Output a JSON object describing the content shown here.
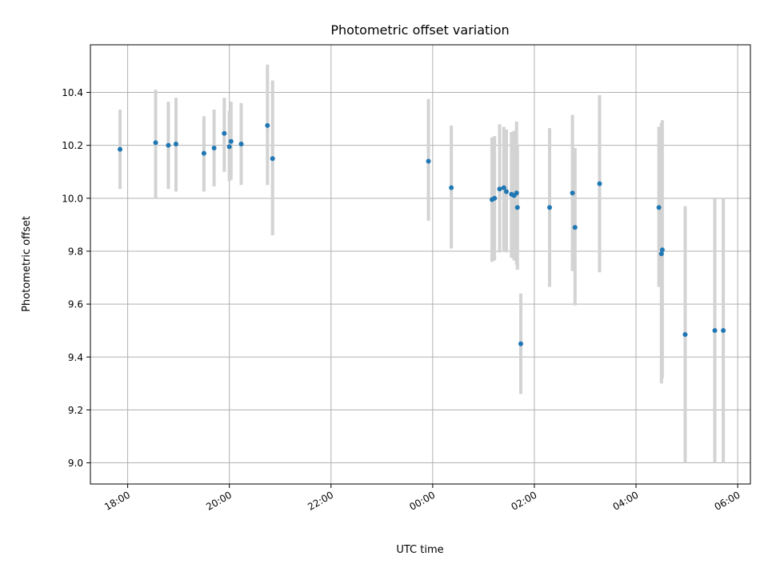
{
  "chart_data": {
    "type": "scatter",
    "title": "Photometric offset variation",
    "xlabel": "UTC time",
    "ylabel": "Photometric offset",
    "x_unit": "hours",
    "xlim": [
      "17:16",
      "06:15"
    ],
    "ylim": [
      8.92,
      10.58
    ],
    "xticks": [
      "18:00",
      "20:00",
      "22:00",
      "00:00",
      "02:00",
      "04:00",
      "06:00"
    ],
    "yticks": [
      "9.0",
      "9.2",
      "9.4",
      "9.6",
      "9.8",
      "10.0",
      "10.2",
      "10.4"
    ],
    "grid": true,
    "colors": {
      "marker": "#1f77b4",
      "errorbar": "#d3d3d3",
      "grid": "#b0b0b0"
    },
    "series": [
      {
        "points": [
          {
            "x": "17:51",
            "y": 10.185,
            "lo": 10.035,
            "hi": 10.335
          },
          {
            "x": "18:33",
            "y": 10.21,
            "lo": 10.0,
            "hi": 10.41
          },
          {
            "x": "18:48",
            "y": 10.2,
            "lo": 10.035,
            "hi": 10.365
          },
          {
            "x": "18:57",
            "y": 10.205,
            "lo": 10.025,
            "hi": 10.38
          },
          {
            "x": "19:30",
            "y": 10.17,
            "lo": 10.025,
            "hi": 10.31
          },
          {
            "x": "19:42",
            "y": 10.19,
            "lo": 10.045,
            "hi": 10.335
          },
          {
            "x": "19:54",
            "y": 10.245,
            "lo": 10.1,
            "hi": 10.38
          },
          {
            "x": "20:00",
            "y": 10.195,
            "lo": 10.065,
            "hi": 10.33
          },
          {
            "x": "20:02",
            "y": 10.215,
            "lo": 10.07,
            "hi": 10.365
          },
          {
            "x": "20:14",
            "y": 10.205,
            "lo": 10.05,
            "hi": 10.36
          },
          {
            "x": "20:45",
            "y": 10.275,
            "lo": 10.05,
            "hi": 10.505
          },
          {
            "x": "20:51",
            "y": 10.15,
            "lo": 9.86,
            "hi": 10.445
          },
          {
            "x": "23:55",
            "y": 10.14,
            "lo": 9.915,
            "hi": 10.375
          },
          {
            "x": "00:22",
            "y": 10.04,
            "lo": 9.81,
            "hi": 10.275
          },
          {
            "x": "01:10",
            "y": 9.995,
            "lo": 9.76,
            "hi": 10.23
          },
          {
            "x": "01:13",
            "y": 10.0,
            "lo": 9.765,
            "hi": 10.235
          },
          {
            "x": "01:19",
            "y": 10.035,
            "lo": 9.795,
            "hi": 10.28
          },
          {
            "x": "01:24",
            "y": 10.04,
            "lo": 9.8,
            "hi": 10.27
          },
          {
            "x": "01:27",
            "y": 10.025,
            "lo": 9.795,
            "hi": 10.26
          },
          {
            "x": "01:33",
            "y": 10.015,
            "lo": 9.775,
            "hi": 10.25
          },
          {
            "x": "01:36",
            "y": 10.01,
            "lo": 9.765,
            "hi": 10.255
          },
          {
            "x": "01:39",
            "y": 10.02,
            "lo": 9.75,
            "hi": 10.29
          },
          {
            "x": "01:40",
            "y": 9.965,
            "lo": 9.73,
            "hi": 10.2
          },
          {
            "x": "01:44",
            "y": 9.45,
            "lo": 9.26,
            "hi": 9.64
          },
          {
            "x": "02:18",
            "y": 9.965,
            "lo": 9.665,
            "hi": 10.265
          },
          {
            "x": "02:45",
            "y": 10.02,
            "lo": 9.725,
            "hi": 10.315
          },
          {
            "x": "02:48",
            "y": 9.89,
            "lo": 9.595,
            "hi": 10.19
          },
          {
            "x": "03:17",
            "y": 10.055,
            "lo": 9.72,
            "hi": 10.39
          },
          {
            "x": "04:27",
            "y": 9.965,
            "lo": 9.665,
            "hi": 10.27
          },
          {
            "x": "04:30",
            "y": 9.79,
            "lo": 9.3,
            "hi": 10.285
          },
          {
            "x": "04:31",
            "y": 9.805,
            "lo": 9.32,
            "hi": 10.295
          },
          {
            "x": "04:58",
            "y": 9.485,
            "lo": 9.0,
            "hi": 9.97
          },
          {
            "x": "05:33",
            "y": 9.5,
            "lo": 9.0,
            "hi": 10.0
          },
          {
            "x": "05:43",
            "y": 9.5,
            "lo": 9.0,
            "hi": 10.0
          }
        ]
      }
    ]
  }
}
